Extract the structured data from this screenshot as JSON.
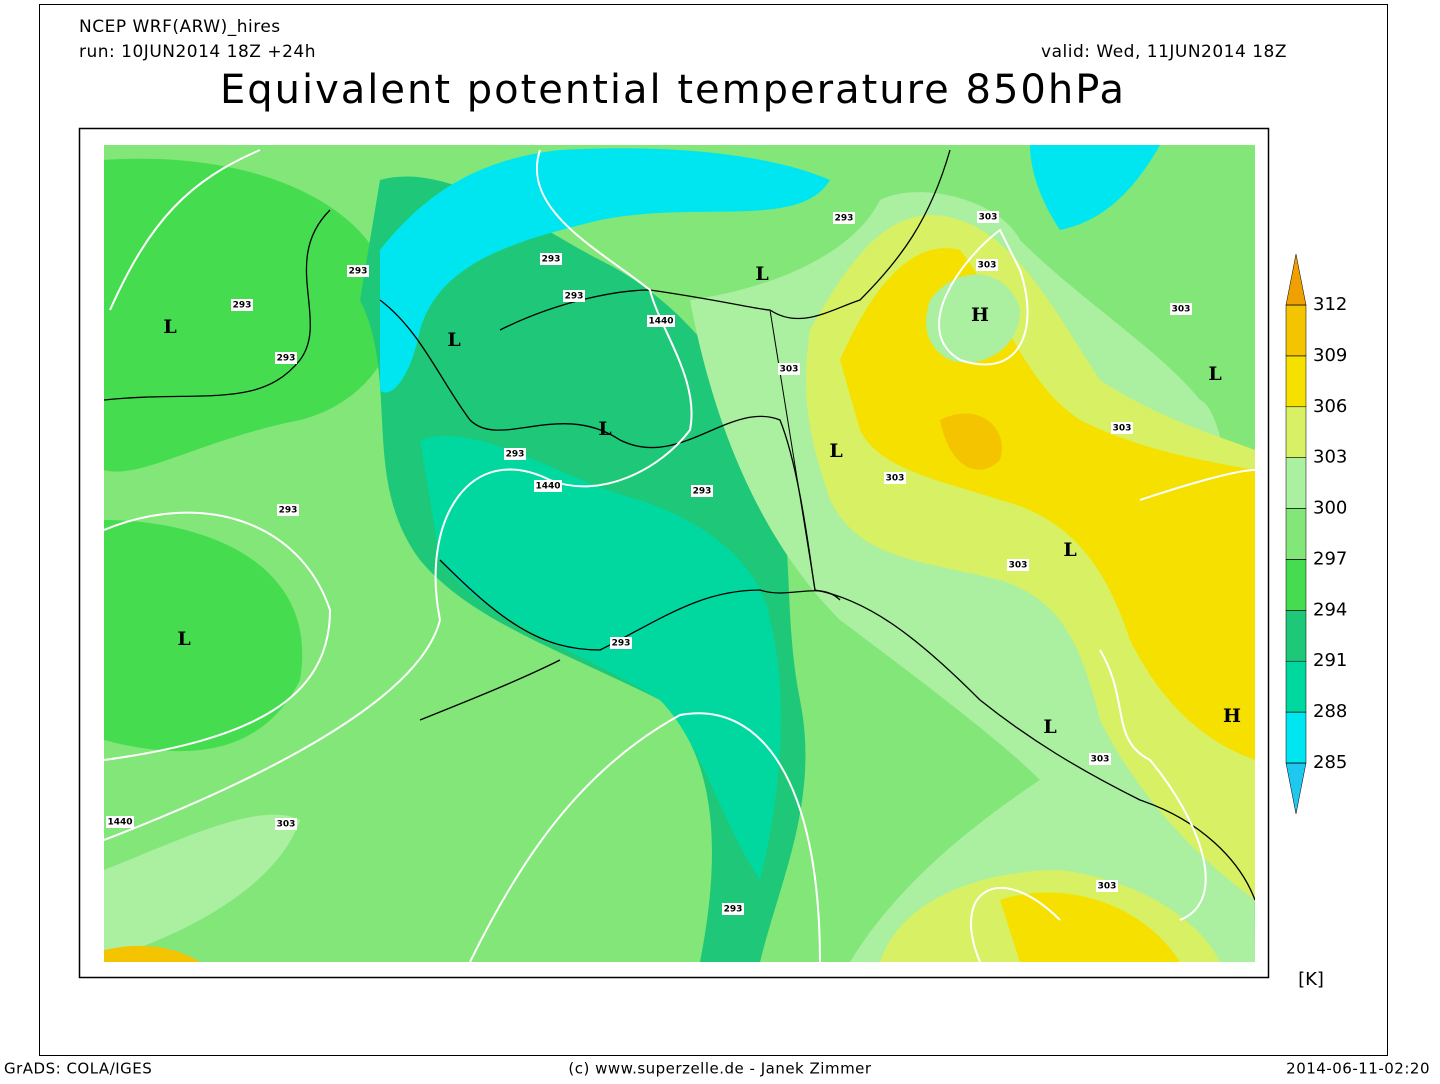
{
  "header": {
    "model": "NCEP WRF(ARW)_hires",
    "run": "run: 10JUN2014 18Z +24h",
    "valid": "valid: Wed, 11JUN2014 18Z",
    "title": "Equivalent potential temperature 850hPa"
  },
  "colorbar": {
    "ticks": [
      285,
      288,
      291,
      294,
      297,
      300,
      303,
      306,
      309,
      312
    ],
    "colors": [
      "#1ec8f0",
      "#00e6f0",
      "#00d8a0",
      "#1ec878",
      "#46dc50",
      "#82e678",
      "#aaf0a0",
      "#d8f064",
      "#f5e000",
      "#f5c400",
      "#f0a000"
    ],
    "unit": "[K]"
  },
  "pressure_centers": [
    "L",
    "L",
    "L",
    "L",
    "L",
    "L",
    "L",
    "L",
    "L",
    "H",
    "H"
  ],
  "contour_labels": [
    "293",
    "293",
    "293",
    "293",
    "293",
    "293",
    "293",
    "293",
    "293",
    "293",
    "293",
    "303",
    "303",
    "303",
    "303",
    "303",
    "303",
    "303",
    "303",
    "303",
    "303",
    "1440",
    "1440",
    "1440"
  ],
  "footer": {
    "left": "GrADS: COLA/IGES",
    "center": "(c) www.superzelle.de - Janek Zimmer",
    "right": "2014-06-11-02:20"
  }
}
